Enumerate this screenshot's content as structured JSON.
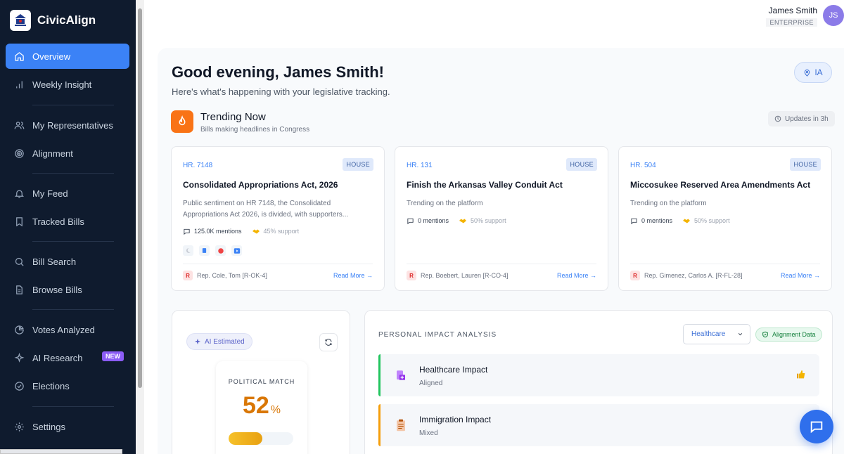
{
  "brand": {
    "name": "CivicAlign",
    "logo_text": "Civic Align"
  },
  "sidebar": {
    "items": [
      {
        "label": "Overview",
        "icon": "home-icon",
        "active": true
      },
      {
        "label": "Weekly Insight",
        "icon": "bar-chart-icon"
      },
      {
        "label": "My Representatives",
        "icon": "users-icon"
      },
      {
        "label": "Alignment",
        "icon": "target-icon"
      },
      {
        "label": "My Feed",
        "icon": "bell-icon"
      },
      {
        "label": "Tracked Bills",
        "icon": "bookmark-icon"
      },
      {
        "label": "Bill Search",
        "icon": "search-icon"
      },
      {
        "label": "Browse Bills",
        "icon": "document-icon"
      },
      {
        "label": "Votes Analyzed",
        "icon": "pie-chart-icon"
      },
      {
        "label": "AI Research",
        "icon": "sparkle-icon",
        "badge": "NEW"
      },
      {
        "label": "Elections",
        "icon": "check-circle-icon"
      },
      {
        "label": "Settings",
        "icon": "gear-icon"
      }
    ]
  },
  "header": {
    "user_name": "James Smith",
    "user_tier": "ENTERPRISE",
    "avatar_initials": "JS"
  },
  "greeting": {
    "title": "Good evening, James Smith!",
    "subtitle": "Here's what's happening with your legislative tracking.",
    "location": "IA"
  },
  "trending": {
    "title": "Trending Now",
    "subtitle": "Bills making headlines in Congress",
    "updates": "Updates in 3h",
    "bills": [
      {
        "number": "HR. 7148",
        "chamber": "HOUSE",
        "title": "Consolidated Appropriations Act, 2026",
        "description": "Public sentiment on HR 7148, the Consolidated Appropriations Act 2026, is divided, with supporters...",
        "mentions": "125.0K mentions",
        "support": "45% support",
        "party": "R",
        "rep": "Rep. Cole, Tom [R-OK-4]",
        "read_more": "Read More →"
      },
      {
        "number": "HR. 131",
        "chamber": "HOUSE",
        "title": "Finish the Arkansas Valley Conduit Act",
        "description": "Trending on the platform",
        "mentions": "0 mentions",
        "support": "50% support",
        "party": "R",
        "rep": "Rep. Boebert, Lauren [R-CO-4]",
        "read_more": "Read More →"
      },
      {
        "number": "HR. 504",
        "chamber": "HOUSE",
        "title": "Miccosukee Reserved Area Amendments Act",
        "description": "Trending on the platform",
        "mentions": "0 mentions",
        "support": "50% support",
        "party": "R",
        "rep": "Rep. Gimenez, Carlos A. [R-FL-28]",
        "read_more": "Read More →"
      }
    ]
  },
  "political_match": {
    "estimate_label": "AI Estimated",
    "label": "POLITICAL MATCH",
    "value": "52",
    "unit": "%",
    "fill_fraction": 0.52
  },
  "impact": {
    "title": "PERSONAL IMPACT ANALYSIS",
    "selected_issue": "Healthcare",
    "data_badge": "Alignment Data",
    "rows": [
      {
        "name": "Healthcare Impact",
        "status": "Aligned",
        "accent": "#22c55e"
      },
      {
        "name": "Immigration Impact",
        "status": "Mixed",
        "accent": "#f59e0b"
      }
    ]
  },
  "colors": {
    "sidebar_bg": "#0f1b2e",
    "accent": "#3b82f6",
    "trending": "#f97316",
    "match": "#d97706"
  }
}
